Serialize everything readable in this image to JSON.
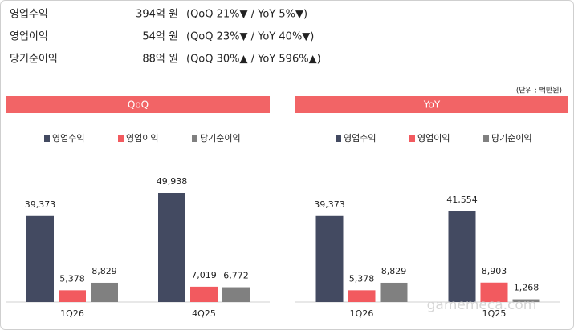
{
  "summary": {
    "rows": [
      [
        "영업수익",
        "394억 원",
        "(QoQ 21%▼ / YoY 5%▼)"
      ],
      [
        "영업이익",
        "54억 원",
        "(QoQ 23%▼ / YoY 40%▼)"
      ],
      [
        "당기순이익",
        "88억 원",
        "(QoQ 30%▲ / YoY 596%▲)"
      ]
    ]
  },
  "unit_note": "(단위 : 백만원)",
  "watermark": "gamemeca.com",
  "chart_data": [
    {
      "type": "bar",
      "title": "QoQ",
      "categories": [
        "1Q26",
        "4Q25"
      ],
      "series": [
        {
          "name": "영업수익",
          "color": "#434a61",
          "values": [
            39373,
            49938
          ],
          "value_labels": [
            "39,373",
            "49,938"
          ]
        },
        {
          "name": "영업이익",
          "color": "#f25a5f",
          "values": [
            5378,
            7019
          ],
          "value_labels": [
            "5,378",
            "7,019"
          ]
        },
        {
          "name": "당기순이익",
          "color": "#808080",
          "values": [
            8829,
            6772
          ],
          "value_labels": [
            "8,829",
            "6,772"
          ]
        }
      ]
    },
    {
      "type": "bar",
      "title": "YoY",
      "categories": [
        "1Q26",
        "1Q25"
      ],
      "series": [
        {
          "name": "영업수익",
          "color": "#434a61",
          "values": [
            39373,
            41554
          ],
          "value_labels": [
            "39,373",
            "41,554"
          ]
        },
        {
          "name": "영업이익",
          "color": "#f25a5f",
          "values": [
            5378,
            8903
          ],
          "value_labels": [
            "5,378",
            "8,903"
          ]
        },
        {
          "name": "당기순이익",
          "color": "#808080",
          "values": [
            8829,
            1268
          ],
          "value_labels": [
            "8,829",
            "1,268"
          ]
        }
      ]
    }
  ]
}
